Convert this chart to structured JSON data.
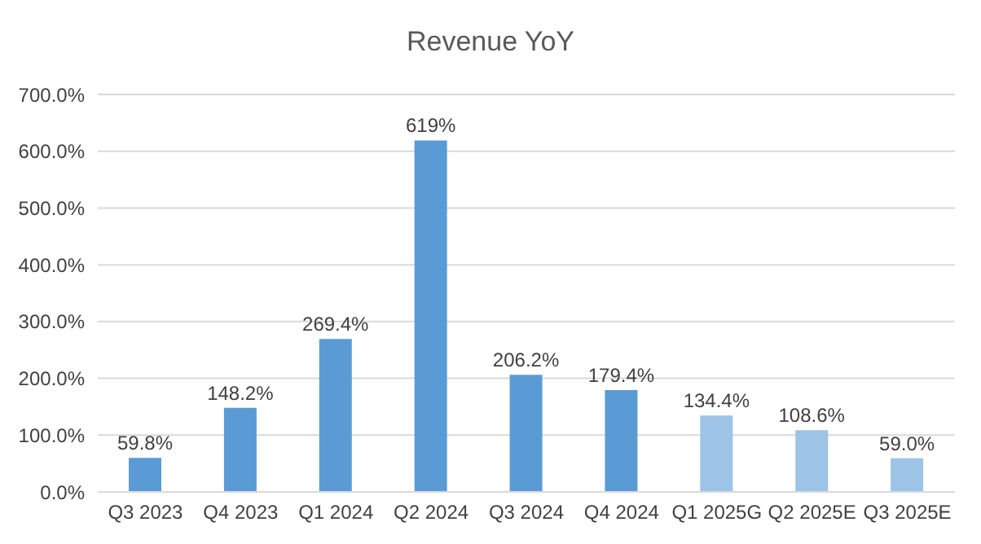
{
  "chart_data": {
    "type": "bar",
    "title": "Revenue YoY",
    "categories": [
      "Q3 2023",
      "Q4 2023",
      "Q1 2024",
      "Q2 2024",
      "Q3 2024",
      "Q4 2024",
      "Q1 2025G",
      "Q2 2025E",
      "Q3 2025E"
    ],
    "values": [
      59.8,
      148.2,
      269.4,
      619,
      206.2,
      179.4,
      134.4,
      108.6,
      59.0
    ],
    "colors": [
      "#5b9bd5",
      "#5b9bd5",
      "#5b9bd5",
      "#5b9bd5",
      "#5b9bd5",
      "#5b9bd5",
      "#9dc3e6",
      "#9dc3e6",
      "#9dc3e6"
    ],
    "value_labels": [
      "59.8%",
      "148.2%",
      "269.4%",
      "619%",
      "206.2%",
      "179.4%",
      "134.4%",
      "108.6%",
      "59.0%"
    ],
    "ylim": [
      0,
      700
    ],
    "yticks": [
      {
        "value": 0,
        "label": "0.0%"
      },
      {
        "value": 100,
        "label": "100.0%"
      },
      {
        "value": 200,
        "label": "200.0%"
      },
      {
        "value": 300,
        "label": "300.0%"
      },
      {
        "value": 400,
        "label": "400.0%"
      },
      {
        "value": 500,
        "label": "500.0%"
      },
      {
        "value": 600,
        "label": "600.0%"
      },
      {
        "value": 700,
        "label": "700.0%"
      }
    ],
    "grid": "y",
    "legend": false
  }
}
